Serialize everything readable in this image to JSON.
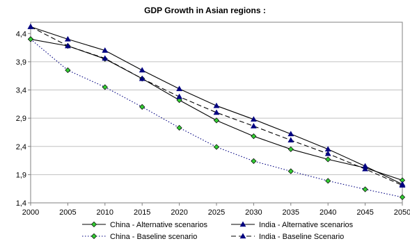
{
  "chart_data": {
    "type": "line",
    "title": "GDP Growth in Asian regions :",
    "xlabel": "",
    "ylabel": "",
    "x": [
      2000,
      2005,
      2010,
      2015,
      2020,
      2025,
      2030,
      2035,
      2040,
      2045,
      2050
    ],
    "ylim": [
      1.4,
      4.6
    ],
    "yticks": [
      "4,4",
      "3,9",
      "3,4",
      "2,9",
      "2,4",
      "1,9",
      "1,4"
    ],
    "ytick_values": [
      4.4,
      3.9,
      3.4,
      2.9,
      2.4,
      1.9,
      1.4
    ],
    "grid": true,
    "legend_position": "bottom",
    "series": [
      {
        "name": "China -  Alternative scenarios",
        "marker": "diamond",
        "line": "solid",
        "color": "#000000",
        "marker_color": "#33cc33",
        "values": [
          4.3,
          4.18,
          3.95,
          3.6,
          3.22,
          2.86,
          2.58,
          2.35,
          2.17,
          2.02,
          1.8
        ]
      },
      {
        "name": "India -  Alternative scenarios",
        "marker": "triangle",
        "line": "solid",
        "color": "#000000",
        "marker_color": "#000080",
        "values": [
          4.52,
          4.3,
          4.1,
          3.75,
          3.42,
          3.12,
          2.88,
          2.62,
          2.35,
          2.05,
          1.73
        ]
      },
      {
        "name": "China - Baseline scenario",
        "marker": "diamond",
        "line": "dotted",
        "color": "#000080",
        "marker_color": "#33cc33",
        "values": [
          4.3,
          3.75,
          3.45,
          3.1,
          2.73,
          2.39,
          2.14,
          1.96,
          1.79,
          1.64,
          1.5
        ]
      },
      {
        "name": "India - Baseline Scenario",
        "marker": "triangle",
        "line": "dashed",
        "color": "#000000",
        "marker_color": "#000080",
        "values": [
          4.52,
          4.18,
          3.96,
          3.6,
          3.28,
          3.0,
          2.76,
          2.51,
          2.27,
          2.0,
          1.71
        ]
      }
    ]
  }
}
